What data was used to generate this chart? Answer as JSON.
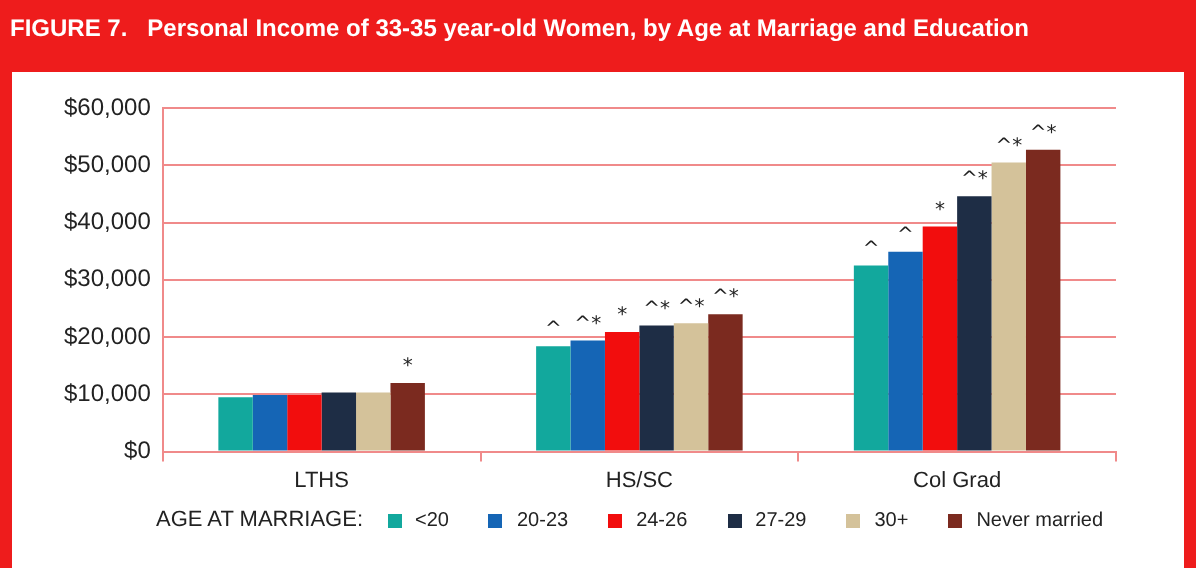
{
  "chart_data": {
    "type": "bar",
    "title": "FIGURE 7.   Personal Income of 33-35 year-old Women, by Age at Marriage and Education",
    "categories": [
      "LTHS",
      "HS/SC",
      "Col Grad"
    ],
    "series": [
      {
        "name": "<20",
        "color": "#12a89d",
        "values": [
          9500,
          18400,
          32500
        ],
        "value_labels": [
          null,
          "^",
          "^"
        ]
      },
      {
        "name": "20-23",
        "color": "#1565b5",
        "values": [
          9900,
          19400,
          34900
        ],
        "value_labels": [
          null,
          "^*",
          "^"
        ]
      },
      {
        "name": "24-26",
        "color": "#f20d0d",
        "values": [
          9900,
          20900,
          39300
        ],
        "value_labels": [
          null,
          "*",
          "*"
        ]
      },
      {
        "name": "27-29",
        "color": "#1e2d45",
        "values": [
          10300,
          22000,
          44600
        ],
        "value_labels": [
          null,
          "^*",
          "^*"
        ]
      },
      {
        "name": "30+",
        "color": "#d4c29a",
        "values": [
          10300,
          22400,
          50500
        ],
        "value_labels": [
          null,
          "^*",
          "^*"
        ]
      },
      {
        "name": "Never married",
        "color": "#7b2a1f",
        "values": [
          12000,
          24000,
          52700
        ],
        "value_labels": [
          "*",
          "^*",
          "^*"
        ]
      }
    ],
    "ylim": [
      0,
      60000
    ],
    "yticks": [
      {
        "value": 0,
        "label": "$0"
      },
      {
        "value": 10000,
        "label": "$10,000"
      },
      {
        "value": 20000,
        "label": "$20,000"
      },
      {
        "value": 30000,
        "label": "$30,000"
      },
      {
        "value": 40000,
        "label": "$40,000"
      },
      {
        "value": 50000,
        "label": "$50,000"
      },
      {
        "value": 60000,
        "label": "$60,000"
      }
    ],
    "grid": "y",
    "legend": "bottom",
    "legend_title": "AGE AT MARRIAGE:"
  }
}
